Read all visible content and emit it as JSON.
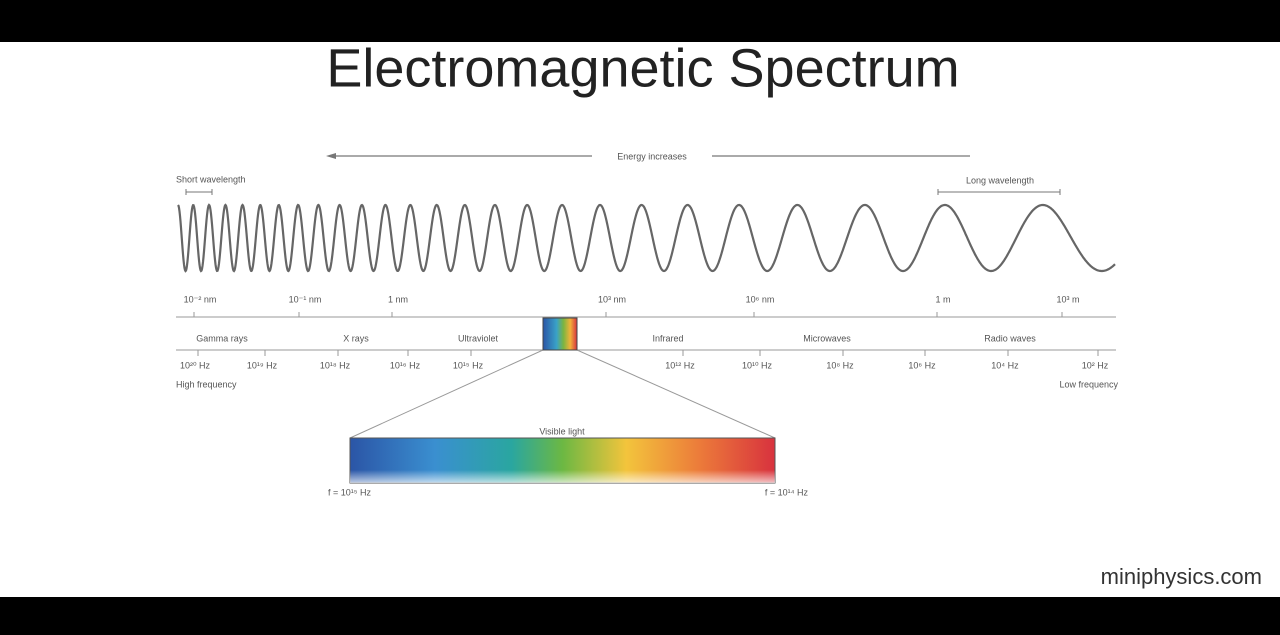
{
  "title": "Electromagnetic Spectrum",
  "energy_arrow": "Energy increases",
  "short_wavelength": "Short wavelength",
  "long_wavelength": "Long wavelength",
  "wavelength_labels": [
    "10⁻² nm",
    "10⁻¹ nm",
    "1 nm",
    "10³ nm",
    "10⁶ nm",
    "1 m",
    "10³ m"
  ],
  "regions": [
    "Gamma rays",
    "X rays",
    "Ultraviolet",
    "Infrared",
    "Microwaves",
    "Radio waves"
  ],
  "frequency_labels": [
    "10²⁰ Hz",
    "10¹⁹ Hz",
    "10¹⁸ Hz",
    "10¹⁶ Hz",
    "10¹⁵ Hz",
    "10¹² Hz",
    "10¹⁰ Hz",
    "10⁸ Hz",
    "10⁶ Hz",
    "10⁴ Hz",
    "10² Hz"
  ],
  "high_frequency": "High frequency",
  "low_frequency": "Low frequency",
  "visible_light": "Visible light",
  "visible_min": "f = 10¹⁵ Hz",
  "visible_max": "f = 10¹⁴ Hz",
  "watermark": "miniphysics.com"
}
